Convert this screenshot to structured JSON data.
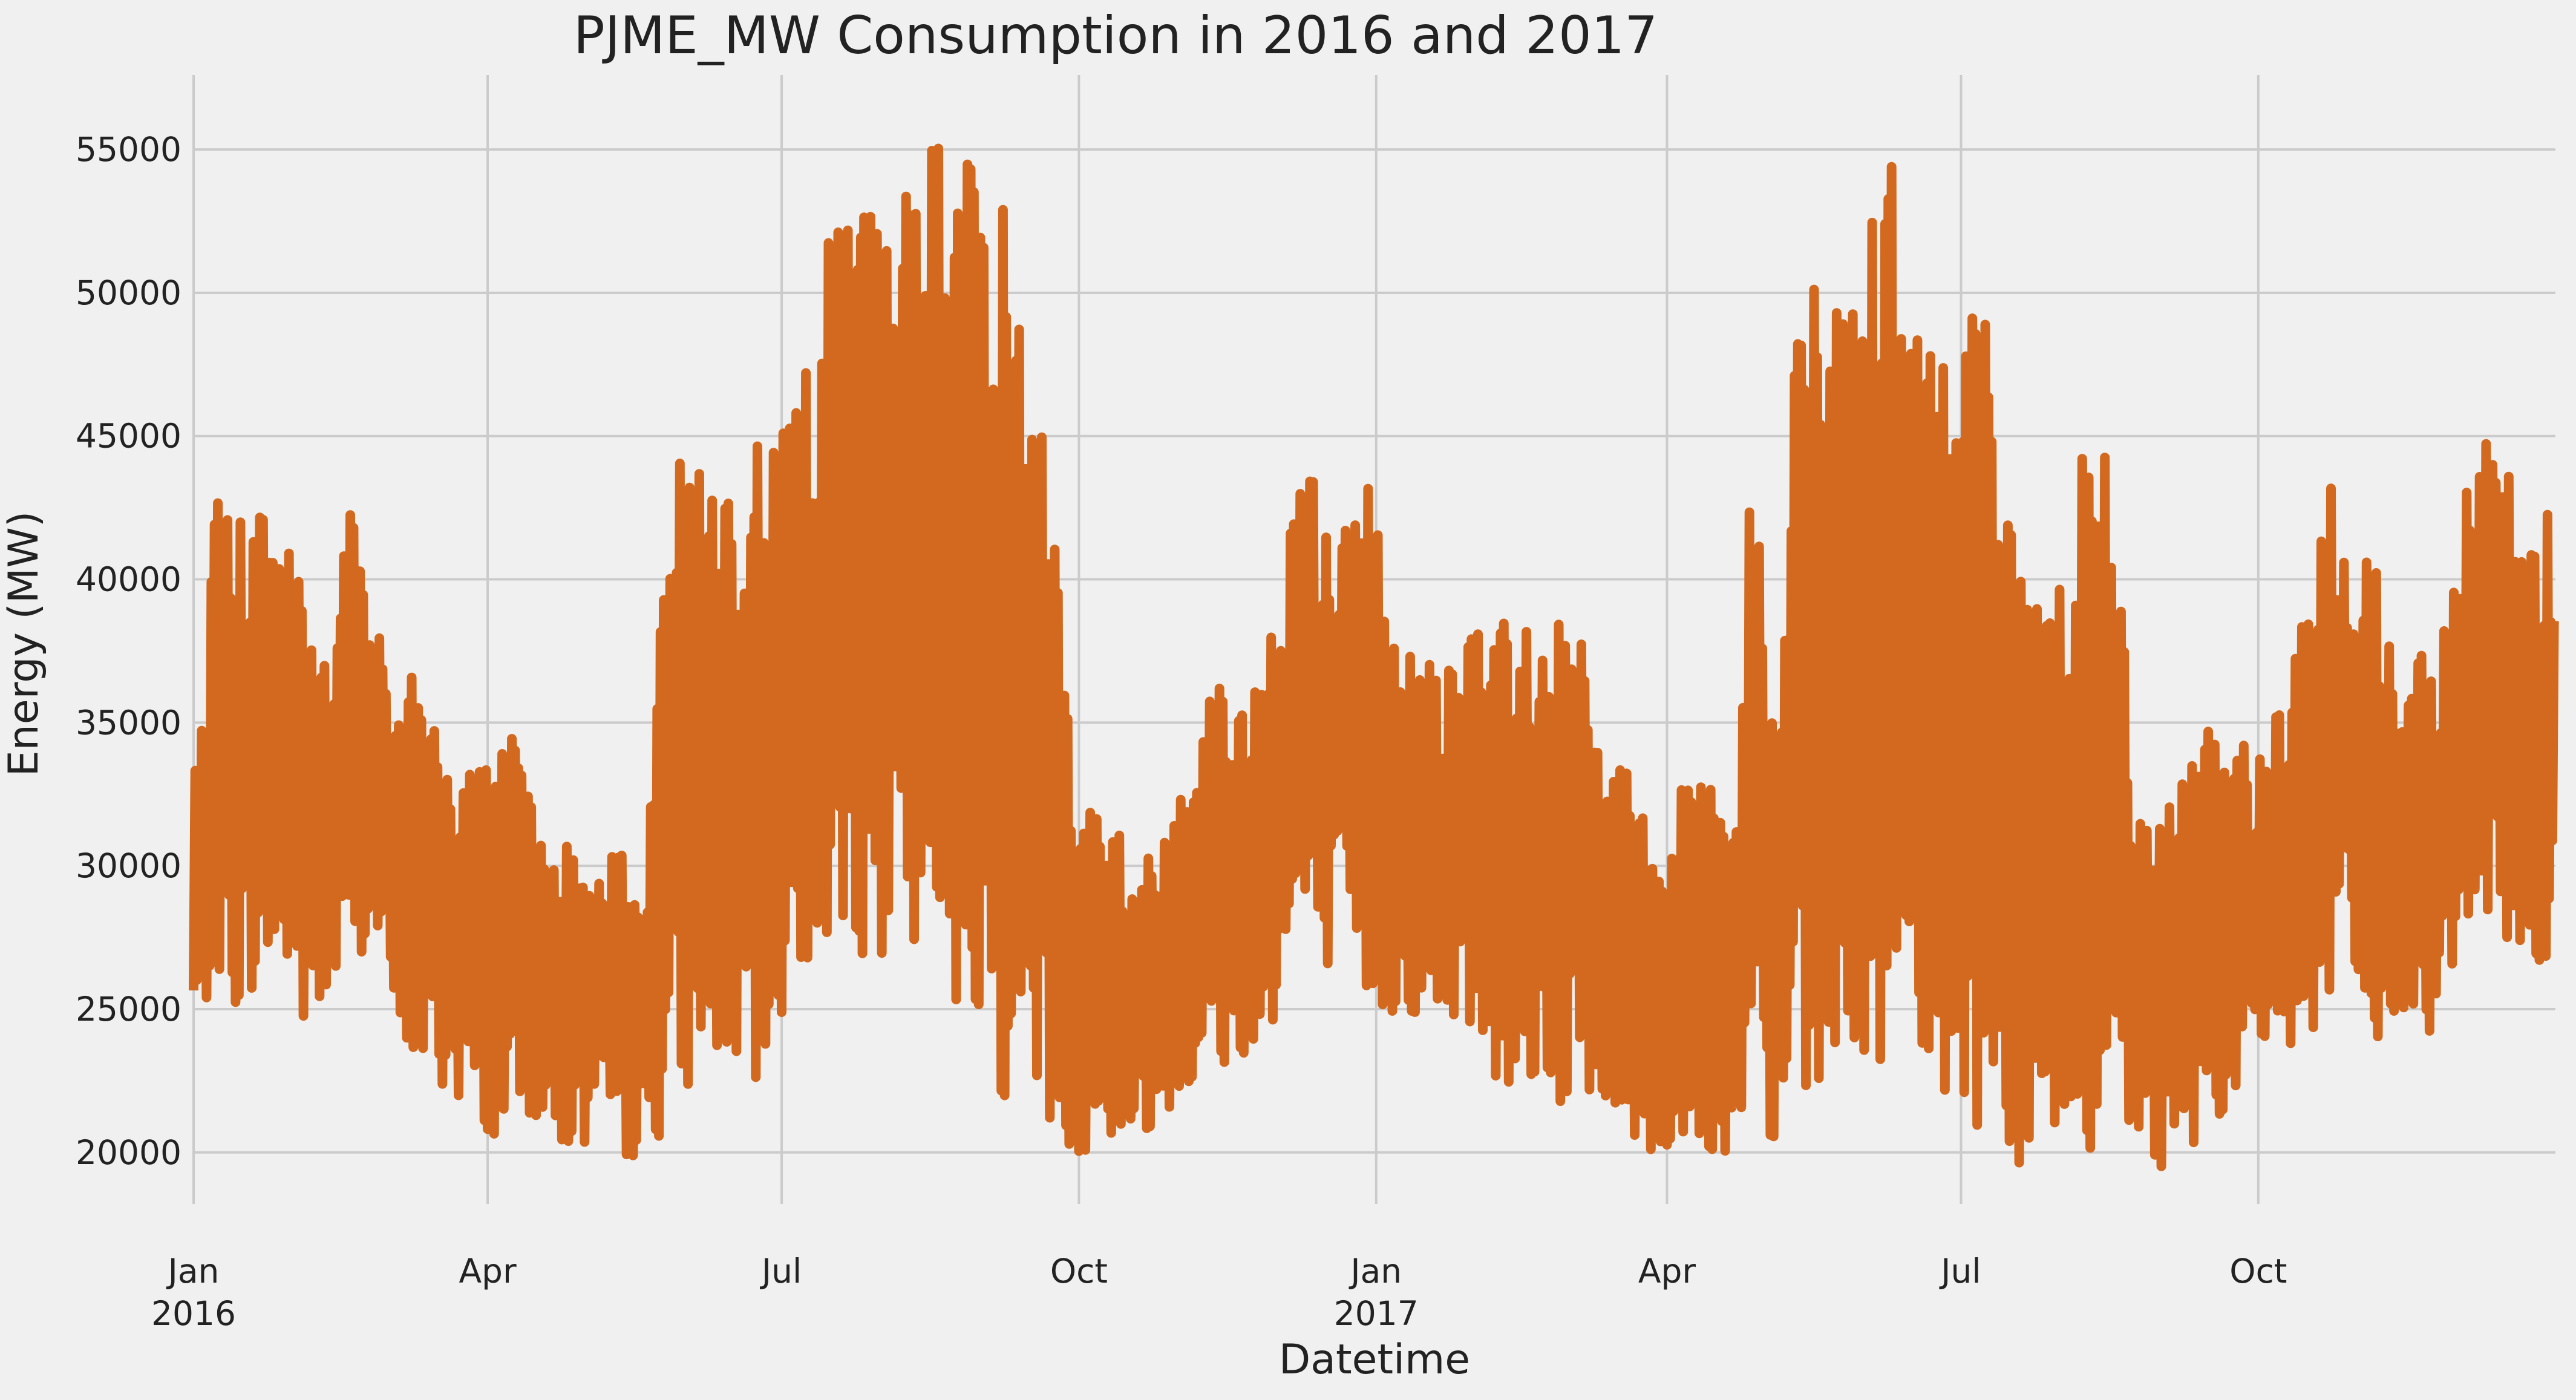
{
  "chart_data": {
    "type": "line",
    "title": "PJME_MW Consumption in 2016 and 2017",
    "xlabel": "Datetime",
    "ylabel": "Energy (MW)",
    "x_range": [
      "2016-01-01",
      "2017-12-31"
    ],
    "ylim": [
      18200,
      57600
    ],
    "yticks": [
      20000,
      25000,
      30000,
      35000,
      40000,
      45000,
      50000,
      55000
    ],
    "xticks": [
      {
        "date": "2016-01-01",
        "label": "Jan",
        "sublabel": "2016"
      },
      {
        "date": "2016-04-01",
        "label": "Apr",
        "sublabel": ""
      },
      {
        "date": "2016-07-01",
        "label": "Jul",
        "sublabel": ""
      },
      {
        "date": "2016-10-01",
        "label": "Oct",
        "sublabel": ""
      },
      {
        "date": "2017-01-01",
        "label": "Jan",
        "sublabel": "2017"
      },
      {
        "date": "2017-04-01",
        "label": "Apr",
        "sublabel": ""
      },
      {
        "date": "2017-07-01",
        "label": "Jul",
        "sublabel": ""
      },
      {
        "date": "2017-10-01",
        "label": "Oct",
        "sublabel": ""
      }
    ],
    "grid": true,
    "line_color": "#d2691e",
    "series": [
      {
        "name": "PJME_MW",
        "daily_envelope": {
          "x": [
            "2016-01-01",
            "2016-01-08",
            "2016-01-15",
            "2016-01-22",
            "2016-01-29",
            "2016-02-05",
            "2016-02-12",
            "2016-02-19",
            "2016-02-26",
            "2016-03-04",
            "2016-03-11",
            "2016-03-18",
            "2016-03-25",
            "2016-04-01",
            "2016-04-08",
            "2016-04-15",
            "2016-04-22",
            "2016-04-29",
            "2016-05-06",
            "2016-05-13",
            "2016-05-20",
            "2016-05-27",
            "2016-06-03",
            "2016-06-10",
            "2016-06-17",
            "2016-06-24",
            "2016-07-01",
            "2016-07-08",
            "2016-07-15",
            "2016-07-22",
            "2016-07-29",
            "2016-08-05",
            "2016-08-12",
            "2016-08-19",
            "2016-08-26",
            "2016-09-02",
            "2016-09-09",
            "2016-09-16",
            "2016-09-23",
            "2016-09-30",
            "2016-10-07",
            "2016-10-14",
            "2016-10-21",
            "2016-10-28",
            "2016-11-04",
            "2016-11-11",
            "2016-11-18",
            "2016-11-25",
            "2016-12-02",
            "2016-12-09",
            "2016-12-16",
            "2016-12-23",
            "2016-12-30",
            "2017-01-06",
            "2017-01-13",
            "2017-01-20",
            "2017-01-27",
            "2017-02-03",
            "2017-02-10",
            "2017-02-17",
            "2017-02-24",
            "2017-03-03",
            "2017-03-10",
            "2017-03-17",
            "2017-03-24",
            "2017-03-31",
            "2017-04-07",
            "2017-04-14",
            "2017-04-21",
            "2017-04-28",
            "2017-05-05",
            "2017-05-12",
            "2017-05-19",
            "2017-05-26",
            "2017-06-02",
            "2017-06-09",
            "2017-06-16",
            "2017-06-23",
            "2017-06-30",
            "2017-07-07",
            "2017-07-14",
            "2017-07-21",
            "2017-07-28",
            "2017-08-04",
            "2017-08-11",
            "2017-08-18",
            "2017-08-25",
            "2017-09-01",
            "2017-09-08",
            "2017-09-15",
            "2017-09-22",
            "2017-09-29",
            "2017-10-06",
            "2017-10-13",
            "2017-10-20",
            "2017-10-27",
            "2017-11-03",
            "2017-11-10",
            "2017-11-17",
            "2017-11-24",
            "2017-12-01",
            "2017-12-08",
            "2017-12-15",
            "2017-12-22",
            "2017-12-31"
          ],
          "max": [
            33800,
            42900,
            42000,
            44200,
            41900,
            39500,
            36300,
            43800,
            39400,
            37200,
            36600,
            34500,
            33100,
            34500,
            35300,
            31800,
            30300,
            31500,
            30500,
            30400,
            29300,
            44800,
            44700,
            42700,
            43900,
            47400,
            45200,
            48000,
            52500,
            52800,
            53000,
            53300,
            56400,
            56400,
            55100,
            53200,
            53500,
            47700,
            42700,
            32900,
            32300,
            31000,
            30400,
            32400,
            32500,
            37100,
            35000,
            36400,
            39000,
            45900,
            41400,
            42500,
            44500,
            38100,
            37400,
            37400,
            39000,
            38700,
            38500,
            40600,
            39800,
            40500,
            36700,
            34500,
            33200,
            30700,
            34100,
            32900,
            30200,
            47200,
            35100,
            53700,
            49000,
            49600,
            52300,
            55300,
            49200,
            49800,
            48500,
            53000,
            43300,
            40600,
            41400,
            42400,
            47700,
            40900,
            32500,
            32300,
            34500,
            35600,
            35000,
            33900,
            35400,
            37400,
            42000,
            44800,
            41100,
            39700,
            37800,
            37200,
            42200,
            44800,
            44700,
            43000,
            44800
          ],
          "min": [
            23500,
            26200,
            24600,
            26200,
            25900,
            23800,
            24800,
            26700,
            27400,
            23300,
            22900,
            21900,
            21600,
            20500,
            20800,
            21200,
            20300,
            19700,
            20200,
            19800,
            19600,
            21200,
            22400,
            23300,
            21600,
            21700,
            24600,
            25800,
            26800,
            26400,
            27300,
            26300,
            25600,
            25900,
            25100,
            22800,
            21500,
            23200,
            20200,
            19800,
            20400,
            20100,
            20500,
            21500,
            22100,
            22500,
            22800,
            22800,
            25300,
            26600,
            26200,
            26000,
            24700,
            24500,
            24700,
            24400,
            24800,
            23300,
            22200,
            22300,
            21600,
            21200,
            20700,
            20700,
            20100,
            19800,
            20300,
            19900,
            19400,
            19500,
            20100,
            21400,
            22400,
            22800,
            23700,
            22400,
            23500,
            22900,
            21000,
            20300,
            20000,
            19500,
            21200,
            20600,
            19700,
            19300,
            20200,
            19500,
            20000,
            20800,
            21500,
            22400,
            23500,
            23700,
            24100,
            25100,
            24000,
            23200,
            24900,
            24000,
            26800,
            28100,
            27400,
            26300,
            25300
          ]
        }
      }
    ]
  }
}
